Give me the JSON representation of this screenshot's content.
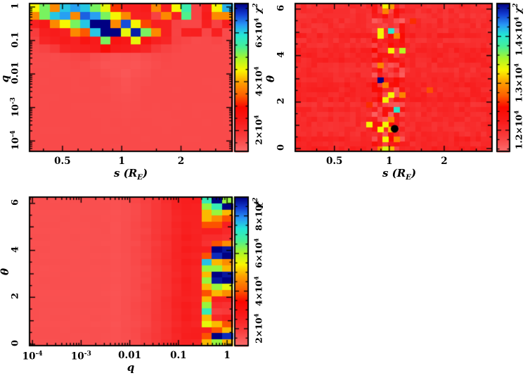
{
  "figure": {
    "background": "#ffffff",
    "text_color": "#000000",
    "description_visible_panels": 3
  },
  "colormap": {
    "stops": [
      [
        0.0,
        252,
        110,
        110
      ],
      [
        0.1,
        248,
        62,
        62
      ],
      [
        0.2,
        248,
        28,
        28
      ],
      [
        0.3,
        250,
        8,
        0
      ],
      [
        0.38,
        252,
        96,
        0
      ],
      [
        0.47,
        252,
        160,
        0
      ],
      [
        0.55,
        250,
        246,
        0
      ],
      [
        0.63,
        170,
        246,
        40
      ],
      [
        0.71,
        70,
        240,
        150
      ],
      [
        0.79,
        36,
        230,
        215
      ],
      [
        0.86,
        40,
        150,
        246
      ],
      [
        0.93,
        18,
        60,
        210
      ],
      [
        1.0,
        0,
        0,
        130
      ]
    ]
  },
  "chart_data": [
    {
      "id": "top_left",
      "type": "heatmap",
      "xlabel": {
        "pre": "s (R",
        "sub": "E",
        "post": ")"
      },
      "ylabel": {
        "text": "q"
      },
      "x_axis": {
        "scale": "log",
        "range": [
          0.34,
          3.63
        ],
        "major_ticks": [
          {
            "v": 0.5,
            "label": "0.5"
          },
          {
            "v": 1,
            "label": "1"
          },
          {
            "v": 2,
            "label": "2"
          }
        ],
        "extra_minors": [
          1.5,
          2.5
        ]
      },
      "y_axis": {
        "scale": "log",
        "range": [
          4.9e-05,
          1.27
        ],
        "major_ticks": [
          {
            "v": 1,
            "label": "1"
          },
          {
            "v": 0.1,
            "label": "0.1"
          },
          {
            "v": 0.01,
            "label": "0.01"
          },
          {
            "v": 0.001,
            "label": "10",
            "sup": "-3"
          },
          {
            "v": 0.0001,
            "label": "10",
            "sup": "-4"
          }
        ]
      },
      "colorbar": {
        "symbol": "χ",
        "exponent": "2",
        "value_units": "1e4",
        "range": [
          1.15,
          7.2
        ],
        "minor_step": 0.5,
        "ticks": [
          {
            "v": 2,
            "label": "2×10",
            "sup": "4"
          },
          {
            "v": 4,
            "label": "4×10",
            "sup": "4"
          },
          {
            "v": 6,
            "label": "6×10",
            "sup": "4"
          }
        ]
      },
      "grid": {
        "cols": 20,
        "rows": 18,
        "value_units": "1e4",
        "noise_amp": 0.012,
        "values": [
          [
            4.5,
            5.2,
            3.8,
            6.1,
            6.3,
            6.1,
            5.2,
            4.6,
            3.2,
            2.3,
            2.3,
            2.4,
            3.8,
            2.3,
            4.5,
            5.6,
            1.7,
            2.3,
            4.5,
            6.2
          ],
          [
            3.8,
            5.2,
            6.1,
            6.3,
            3.8,
            6.6,
            6.3,
            5.2,
            4.5,
            3.8,
            2.3,
            2.3,
            1.7,
            3.8,
            2.3,
            5.4,
            1.7,
            2.4,
            3.8,
            3.8
          ],
          [
            2.3,
            2.5,
            3.8,
            4.5,
            5.2,
            6.1,
            7.4,
            7.6,
            3.8,
            6.7,
            4.5,
            3.3,
            2.3,
            2.3,
            1.7,
            1.65,
            1.65,
            2.3,
            1.7,
            2.3
          ],
          [
            1.8,
            2.3,
            2.4,
            2.3,
            3.8,
            3.4,
            6.1,
            7.6,
            7.3,
            4.6,
            7.0,
            5.2,
            3.8,
            2.3,
            1.7,
            2.3,
            2.3,
            1.65,
            2.3,
            1.6
          ],
          [
            1.7,
            2.2,
            2.3,
            2.4,
            2.3,
            2.6,
            2.4,
            5.2,
            2.6,
            2.5,
            4.6,
            2.6,
            2.3,
            2.2,
            1.7,
            1.65,
            1.6,
            1.6,
            1.65,
            1.6
          ],
          [
            1.65,
            1.7,
            1.85,
            2.2,
            2.25,
            2.3,
            2.35,
            2.8,
            2.4,
            2.35,
            2.3,
            2.2,
            1.85,
            1.7,
            1.65,
            1.6,
            1.6,
            1.6,
            1.6,
            1.6
          ],
          [
            1.6,
            1.6,
            1.6,
            1.62,
            1.65,
            1.68,
            1.6,
            1.55,
            1.5,
            1.52,
            1.5,
            1.55,
            1.6,
            1.62,
            1.6,
            1.6,
            1.6,
            1.6,
            1.6,
            1.6
          ],
          [
            1.6,
            1.6,
            1.6,
            1.6,
            1.62,
            1.6,
            1.55,
            1.5,
            1.48,
            1.5,
            1.48,
            1.52,
            1.58,
            1.62,
            1.6,
            1.6,
            1.6,
            1.6,
            1.6,
            1.6
          ],
          [
            1.6,
            1.6,
            1.6,
            1.6,
            1.6,
            1.6,
            1.6,
            1.55,
            1.5,
            1.46,
            1.52,
            1.55,
            1.6,
            1.6,
            1.6,
            1.6,
            1.6,
            1.6,
            1.6,
            1.6
          ],
          [
            1.6,
            1.6,
            1.6,
            1.6,
            1.6,
            1.6,
            1.6,
            1.6,
            1.55,
            1.5,
            1.55,
            1.58,
            1.6,
            1.6,
            1.6,
            1.6,
            1.6,
            1.6,
            1.6,
            1.6
          ],
          [
            1.6,
            1.6,
            1.6,
            1.6,
            1.6,
            1.6,
            1.6,
            1.58,
            1.55,
            1.52,
            1.55,
            1.6,
            1.6,
            1.6,
            1.6,
            1.6,
            1.6,
            1.6,
            1.6,
            1.6
          ],
          [
            1.6,
            1.6,
            1.6,
            1.6,
            1.6,
            1.6,
            1.6,
            1.6,
            1.56,
            1.55,
            1.56,
            1.6,
            1.6,
            1.6,
            1.6,
            1.6,
            1.6,
            1.6,
            1.6,
            1.6
          ],
          [
            1.6,
            1.6,
            1.6,
            1.6,
            1.6,
            1.6,
            1.6,
            1.6,
            1.58,
            1.57,
            1.58,
            1.6,
            1.6,
            1.6,
            1.6,
            1.6,
            1.6,
            1.6,
            1.6,
            1.6
          ],
          [
            1.6,
            1.6,
            1.6,
            1.6,
            1.6,
            1.6,
            1.6,
            1.6,
            1.59,
            1.58,
            1.59,
            1.6,
            1.6,
            1.6,
            1.6,
            1.6,
            1.6,
            1.6,
            1.6,
            1.6
          ],
          [
            1.6,
            1.6,
            1.6,
            1.6,
            1.6,
            1.6,
            1.6,
            1.6,
            1.6,
            1.6,
            1.6,
            1.6,
            1.6,
            1.6,
            1.6,
            1.6,
            1.6,
            1.6,
            1.6,
            1.6
          ],
          [
            1.6,
            1.6,
            1.6,
            1.6,
            1.6,
            1.6,
            1.6,
            1.6,
            1.6,
            1.6,
            1.6,
            1.6,
            1.6,
            1.6,
            1.6,
            1.6,
            1.6,
            1.6,
            1.6,
            1.6
          ],
          [
            1.6,
            1.6,
            1.6,
            1.6,
            1.6,
            1.6,
            1.6,
            1.6,
            1.6,
            1.6,
            1.6,
            1.6,
            1.6,
            1.6,
            1.6,
            1.6,
            1.6,
            1.6,
            1.6,
            1.6
          ],
          [
            1.6,
            1.6,
            1.6,
            1.6,
            1.6,
            1.6,
            1.6,
            1.6,
            1.6,
            1.6,
            1.6,
            1.6,
            1.6,
            1.6,
            1.6,
            1.6,
            1.6,
            1.6,
            1.6,
            1.6
          ]
        ]
      }
    },
    {
      "id": "top_right",
      "type": "heatmap",
      "xlabel": {
        "pre": "s (R",
        "sub": "E",
        "post": ")"
      },
      "ylabel": {
        "text": "θ"
      },
      "x_axis": {
        "scale": "log",
        "range": [
          0.305,
          3.66
        ],
        "major_ticks": [
          {
            "v": 0.5,
            "label": "0.5"
          },
          {
            "v": 1,
            "label": "1"
          },
          {
            "v": 2,
            "label": "2"
          }
        ],
        "extra_minors": [
          1.5,
          2.5
        ]
      },
      "y_axis": {
        "scale": "linear",
        "range": [
          -0.12,
          6.24
        ],
        "major_ticks": [
          {
            "v": 0,
            "label": "0"
          },
          {
            "v": 2,
            "label": "2"
          },
          {
            "v": 4,
            "label": "4"
          },
          {
            "v": 6,
            "label": "6"
          }
        ],
        "medium_step": 1,
        "minor_step": 0.5
      },
      "colorbar": {
        "symbol": "χ",
        "exponent": "2",
        "value_units": "1e4",
        "range": [
          1.155,
          1.47
        ],
        "minor_step": 0.02,
        "ticks": [
          {
            "v": 1.2,
            "label": "1.2×10",
            "sup": "4"
          },
          {
            "v": 1.3,
            "label": "1.3×10",
            "sup": "4"
          },
          {
            "v": 1.4,
            "label": "1.4×10",
            "sup": "4"
          }
        ]
      },
      "grid": {
        "cols": 36,
        "rows": 30,
        "value_units": "1e4",
        "base": 1.205,
        "noise_amp": 0.009,
        "row_noise_amp": 0.012,
        "band": {
          "col_min": 14,
          "col_max": 19,
          "amp": 0.04
        },
        "overrides": [
          [
            16,
            0,
            1.33
          ],
          [
            17,
            0,
            1.3
          ],
          [
            16,
            1,
            1.29
          ],
          [
            15,
            5,
            1.33
          ],
          [
            17,
            5,
            1.4
          ],
          [
            15,
            6,
            1.33
          ],
          [
            18,
            6,
            1.29
          ],
          [
            17,
            9,
            1.33
          ],
          [
            19,
            9,
            1.35
          ],
          [
            15,
            12,
            1.29
          ],
          [
            21,
            3,
            1.26
          ],
          [
            15,
            15,
            1.47
          ],
          [
            16,
            16,
            1.29
          ],
          [
            17,
            18,
            1.33
          ],
          [
            19,
            18,
            1.29
          ],
          [
            16,
            19,
            1.33
          ],
          [
            18,
            21,
            1.4
          ],
          [
            13,
            20,
            1.26
          ],
          [
            17,
            23,
            1.29
          ],
          [
            13,
            24,
            1.33
          ],
          [
            16,
            24,
            1.33
          ],
          [
            15,
            25,
            1.33
          ],
          [
            17,
            25,
            1.31
          ],
          [
            24,
            17,
            1.27
          ],
          [
            16,
            27,
            1.33
          ],
          [
            18,
            27,
            1.29
          ],
          [
            15,
            29,
            1.29
          ],
          [
            16,
            29,
            1.34
          ],
          [
            17,
            29,
            1.31
          ]
        ]
      },
      "marker": {
        "s": 1.07,
        "theta": 0.85,
        "color": "#000000",
        "shape": "filled-circle"
      }
    },
    {
      "id": "bottom_left",
      "type": "heatmap",
      "xlabel": {
        "pre": "q",
        "sub": "",
        "post": ""
      },
      "ylabel": {
        "text": "θ"
      },
      "x_axis": {
        "scale": "log",
        "range": [
          8.7e-05,
          1.26
        ],
        "major_ticks": [
          {
            "v": 0.0001,
            "label": "10",
            "sup": "-4"
          },
          {
            "v": 0.001,
            "label": "10",
            "sup": "-3"
          },
          {
            "v": 0.01,
            "label": "0.01"
          },
          {
            "v": 0.1,
            "label": "0.1"
          },
          {
            "v": 1,
            "label": "1"
          }
        ]
      },
      "y_axis": {
        "scale": "linear",
        "range": [
          -0.06,
          6.27
        ],
        "major_ticks": [
          {
            "v": 0,
            "label": "0"
          },
          {
            "v": 2,
            "label": "2"
          },
          {
            "v": 4,
            "label": "4"
          },
          {
            "v": 6,
            "label": "6"
          }
        ],
        "medium_step": 1,
        "minor_step": 0.5
      },
      "colorbar": {
        "symbol": "χ",
        "exponent": "2",
        "value_units": "1e4",
        "range": [
          1.1,
          9.0
        ],
        "minor_step": 0.5,
        "ticks": [
          {
            "v": 2,
            "label": "2×10",
            "sup": "4"
          },
          {
            "v": 4,
            "label": "4×10",
            "sup": "4"
          },
          {
            "v": 6,
            "label": "6×10",
            "sup": "4"
          },
          {
            "v": 8,
            "label": "8×10",
            "sup": "4"
          }
        ]
      },
      "grid": {
        "cols": 20,
        "rows": 24,
        "value_units": "1e4",
        "column_values": [
          1.6,
          1.6,
          1.6,
          1.6,
          1.6,
          1.6,
          1.6,
          1.6,
          1.57,
          1.62,
          1.7,
          1.8,
          2.0,
          2.2,
          2.45,
          2.6,
          2.55,
          2.5,
          2.5,
          2.5
        ],
        "column_noise": [
          0.015,
          0.015,
          0.015,
          0.015,
          0.015,
          0.015,
          0.02,
          0.02,
          0.03,
          0.03,
          0.05,
          0.07,
          0.09,
          0.09,
          0.1,
          0.14,
          0.12,
          0,
          0,
          0
        ],
        "column_overrides": {
          "17": [
            7.0,
            6.2,
            5.0,
            5.0,
            4.0,
            2.6,
            2.3,
            2.2,
            2.6,
            4.0,
            7.6,
            6.2,
            5.0,
            6.2,
            5.0,
            4.0,
            5.0,
            6.2,
            7.0,
            5.0,
            5.6,
            2.6,
            4.0,
            5.0
          ],
          "18": [
            9.0,
            7.0,
            6.2,
            4.6,
            4.0,
            2.6,
            2.3,
            4.0,
            9.0,
            8.6,
            5.0,
            6.2,
            9.0,
            8.8,
            6.2,
            5.0,
            2.6,
            2.3,
            1.9,
            2.4,
            5.0,
            4.0,
            9.0,
            6.2
          ],
          "19": [
            6.2,
            9.0,
            5.0,
            4.0,
            2.6,
            2.4,
            2.2,
            4.6,
            8.8,
            9.0,
            4.6,
            5.0,
            8.8,
            9.0,
            5.6,
            4.6,
            2.6,
            2.2,
            2.0,
            2.6,
            4.0,
            5.0,
            8.6,
            5.0
          ]
        }
      }
    }
  ]
}
